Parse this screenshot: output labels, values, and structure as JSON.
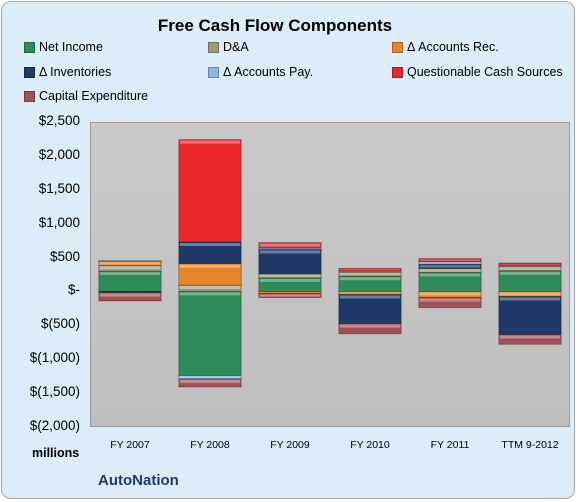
{
  "chart_data": {
    "type": "bar",
    "stacked": true,
    "title": "Free Cash Flow Components",
    "ylabel": "",
    "units_label": "millions",
    "ylim": [
      -2000,
      2500
    ],
    "ytick_step": 500,
    "ytick_labels": [
      "$2,500",
      "$2,000",
      "$1,500",
      "$1,000",
      "$500",
      "$-",
      "$(500)",
      "$(1,000)",
      "$(1,500)",
      "$(2,000)"
    ],
    "categories": [
      "FY 2007",
      "FY 2008",
      "FY 2009",
      "FY 2010",
      "FY 2011",
      "TTM 9-2012"
    ],
    "grid": false,
    "legend_position": "top",
    "series": [
      {
        "name": "Net Income",
        "color": "#2e8b57",
        "values": [
          300,
          -1240,
          200,
          225,
          280,
          305
        ]
      },
      {
        "name": "D&A",
        "color": "#9e9a78",
        "values": [
          85,
          95,
          60,
          60,
          60,
          65
        ]
      },
      {
        "name": "Δ Accounts Rec.",
        "color": "#e5862a",
        "values": [
          60,
          315,
          -30,
          -45,
          -90,
          -75
        ]
      },
      {
        "name": "Δ Inventories",
        "color": "#1f3a68",
        "values": [
          -15,
          320,
          360,
          -430,
          60,
          -560
        ]
      },
      {
        "name": "Δ Accounts Pay.",
        "color": "#8fb4e0",
        "values": [
          10,
          -50,
          20,
          15,
          40,
          15
        ]
      },
      {
        "name": "Questionable Cash Sources",
        "color": "#e8262b",
        "values": [
          0,
          1510,
          80,
          40,
          45,
          35
        ]
      },
      {
        "name": "Capital Expenditure",
        "color": "#a24f57",
        "values": [
          -125,
          -120,
          -60,
          -150,
          -150,
          -145
        ]
      }
    ]
  },
  "footer": {
    "company": "AutoNation"
  }
}
